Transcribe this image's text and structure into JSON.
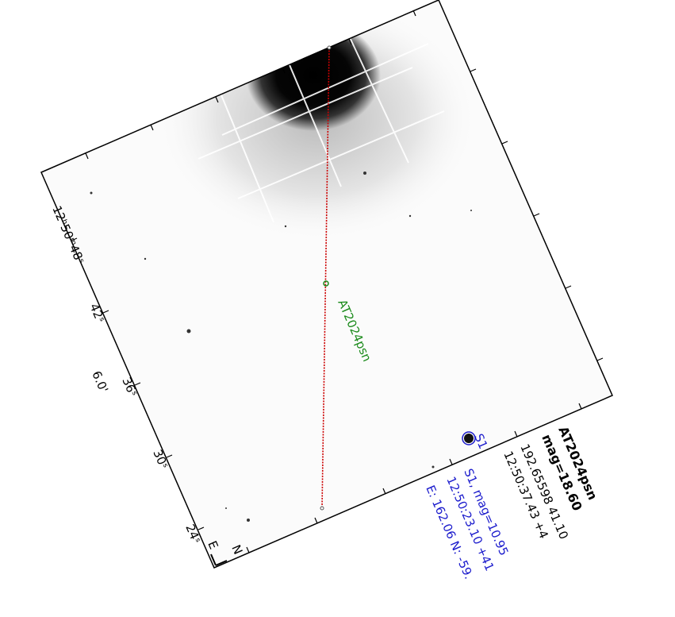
{
  "chart": {
    "ra_ticks": [
      "12ʰ50ᵐ48ˢ",
      "42ˢ",
      "36ˢ",
      "30ˢ",
      "24ˢ"
    ],
    "scale_label": "6.0'",
    "compass": {
      "north": "N",
      "east": "E"
    }
  },
  "target": {
    "name": "AT2024psn",
    "mag_line": "mag=18.60",
    "deg_line": "192.65598 41.10",
    "sex_line": "12:50:37.43 +4"
  },
  "offset_star": {
    "label": "S1",
    "mag_line": "S1, mag=10.95",
    "coord_line": "12:50:23.10 +41",
    "offset_line": "E: 162.06 N: -59."
  },
  "colors": {
    "target": "#1a8a1a",
    "offset_star": "#1a1acc",
    "offset_path": "#cc0000",
    "frame": "#000000"
  }
}
